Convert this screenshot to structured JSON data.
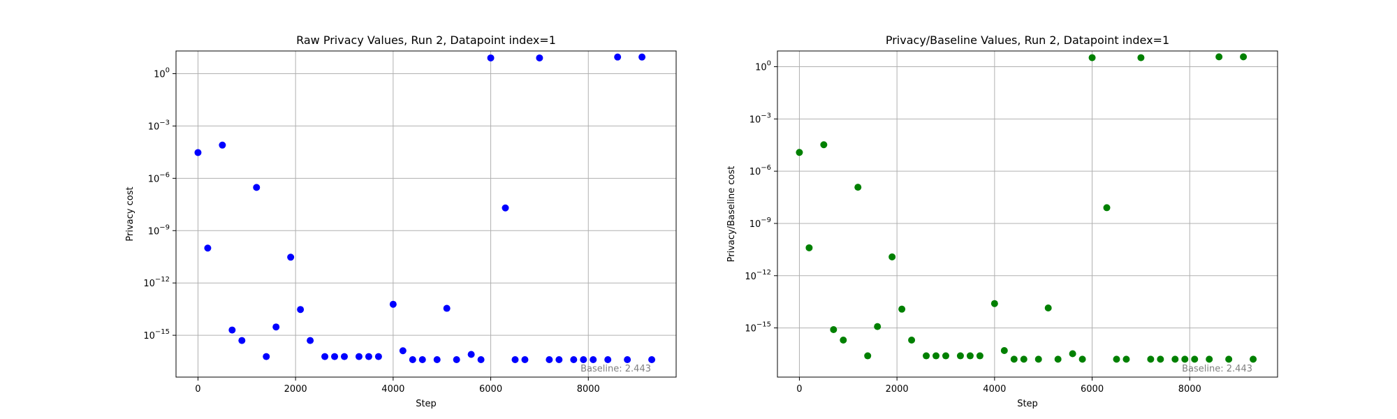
{
  "chart_data": [
    {
      "type": "scatter",
      "title": "Raw Privacy Values, Run 2, Datapoint index=1",
      "xlabel": "Step",
      "ylabel": "Privacy cost",
      "yscale": "log",
      "xlim": [
        -450,
        9800
      ],
      "ylim": [
        4e-18,
        20.0
      ],
      "x_ticks": [
        0,
        2000,
        4000,
        6000,
        8000
      ],
      "y_ticks": [
        1,
        0.001,
        1e-06,
        1e-09,
        1e-12,
        1e-15
      ],
      "y_tick_labels": [
        [
          "10",
          "0"
        ],
        [
          "10",
          "−3"
        ],
        [
          "10",
          "−6"
        ],
        [
          "10",
          "−9"
        ],
        [
          "10",
          "−12"
        ],
        [
          "10",
          "−15"
        ]
      ],
      "grid": true,
      "color": "#0000ff",
      "annotation": "Baseline: 2.443",
      "x": [
        0,
        200,
        500,
        700,
        900,
        1200,
        1400,
        1600,
        1900,
        2100,
        2300,
        2600,
        2800,
        3000,
        3300,
        3500,
        3700,
        4000,
        4200,
        4400,
        4600,
        4900,
        5100,
        5300,
        5600,
        5800,
        6000,
        6300,
        6500,
        6700,
        7000,
        7200,
        7400,
        7700,
        7900,
        8100,
        8400,
        8600,
        8800,
        9100,
        9300
      ],
      "y": [
        3e-05,
        1e-10,
        8e-05,
        2e-15,
        5e-16,
        3e-07,
        6e-17,
        3e-15,
        3e-11,
        3e-14,
        5e-16,
        6e-17,
        6e-17,
        6e-17,
        6e-17,
        6e-17,
        6e-17,
        6e-14,
        1.3e-16,
        4e-17,
        4e-17,
        4e-17,
        3.5e-14,
        4e-17,
        8e-17,
        4e-17,
        8,
        2e-08,
        4e-17,
        4e-17,
        8,
        4e-17,
        4e-17,
        4e-17,
        4e-17,
        4e-17,
        4e-17,
        9,
        4e-17,
        9,
        4e-17
      ]
    },
    {
      "type": "scatter",
      "title": "Privacy/Baseline Values, Run 2, Datapoint index=1",
      "xlabel": "Step",
      "ylabel": "Privacy/Baseline cost",
      "yscale": "log",
      "xlim": [
        -450,
        9800
      ],
      "ylim": [
        1.5e-18,
        8.0
      ],
      "x_ticks": [
        0,
        2000,
        4000,
        6000,
        8000
      ],
      "y_ticks": [
        1,
        0.001,
        1e-06,
        1e-09,
        1e-12,
        1e-15
      ],
      "y_tick_labels": [
        [
          "10",
          "0"
        ],
        [
          "10",
          "−3"
        ],
        [
          "10",
          "−6"
        ],
        [
          "10",
          "−9"
        ],
        [
          "10",
          "−12"
        ],
        [
          "10",
          "−15"
        ]
      ],
      "grid": true,
      "color": "#008000",
      "annotation": "Baseline: 2.443",
      "x": [
        0,
        200,
        500,
        700,
        900,
        1200,
        1400,
        1600,
        1900,
        2100,
        2300,
        2600,
        2800,
        3000,
        3300,
        3500,
        3700,
        4000,
        4200,
        4400,
        4600,
        4900,
        5100,
        5300,
        5600,
        5800,
        6000,
        6300,
        6500,
        6700,
        7000,
        7200,
        7400,
        7700,
        7900,
        8100,
        8400,
        8600,
        8800,
        9100,
        9300
      ],
      "y": [
        1.2e-05,
        4e-11,
        3.3e-05,
        8e-16,
        2e-16,
        1.2e-07,
        2.5e-17,
        1.2e-15,
        1.2e-11,
        1.2e-14,
        2e-16,
        2.5e-17,
        2.5e-17,
        2.5e-17,
        2.5e-17,
        2.5e-17,
        2.5e-17,
        2.5e-14,
        5e-17,
        1.6e-17,
        1.6e-17,
        1.6e-17,
        1.4e-14,
        1.6e-17,
        3.3e-17,
        1.6e-17,
        3.3,
        8e-09,
        1.6e-17,
        1.6e-17,
        3.3,
        1.6e-17,
        1.6e-17,
        1.6e-17,
        1.6e-17,
        1.6e-17,
        1.6e-17,
        3.7,
        1.6e-17,
        3.7,
        1.6e-17
      ]
    }
  ]
}
